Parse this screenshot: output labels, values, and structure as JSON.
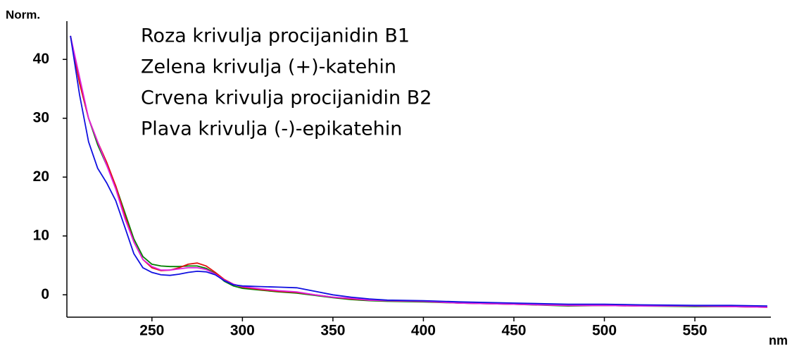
{
  "chart_data": {
    "type": "line",
    "y_label": "Norm.",
    "x_label": "nm",
    "annotations": [
      "Roza krivulja procijanidin B1",
      "Zelena krivulja (+)-katehin",
      "Crvena krivulja procijanidin B2",
      "Plava krivulja (-)-epikatehin"
    ],
    "x": [
      205,
      210,
      215,
      220,
      225,
      230,
      235,
      240,
      245,
      250,
      255,
      260,
      265,
      270,
      275,
      280,
      285,
      290,
      295,
      300,
      310,
      320,
      330,
      340,
      350,
      360,
      370,
      380,
      400,
      420,
      450,
      480,
      500,
      520,
      550,
      570,
      590
    ],
    "series": [
      {
        "color": "#008000",
        "values": [
          44,
          36,
          30,
          25.5,
          22,
          18.5,
          14,
          9.5,
          6.5,
          5.2,
          4.9,
          4.8,
          4.8,
          4.9,
          4.9,
          4.5,
          3.6,
          2.3,
          1.5,
          1.1,
          0.8,
          0.5,
          0.3,
          -0.1,
          -0.5,
          -0.8,
          -1.0,
          -1.1,
          -1.2,
          -1.4,
          -1.6,
          -1.9,
          -1.8,
          -1.9,
          -2.0,
          -2.0,
          -2.1
        ]
      },
      {
        "color": "#e01010",
        "values": [
          44,
          36,
          30,
          26,
          22.5,
          18.5,
          13.5,
          9,
          6,
          4.6,
          4.1,
          4.2,
          4.6,
          5.2,
          5.4,
          4.9,
          3.8,
          2.6,
          1.8,
          1.3,
          0.9,
          0.6,
          0.4,
          0,
          -0.4,
          -0.7,
          -0.9,
          -1.0,
          -1.1,
          -1.4,
          -1.6,
          -1.8,
          -1.8,
          -1.9,
          -1.9,
          -2.0,
          -2.1
        ]
      },
      {
        "color": "#e020e0",
        "values": [
          44,
          37,
          30,
          26,
          22,
          18,
          13,
          9,
          6,
          4.8,
          4.2,
          4.2,
          4.4,
          4.6,
          4.6,
          4.3,
          3.5,
          2.5,
          1.8,
          1.4,
          1.0,
          0.7,
          0.5,
          0,
          -0.4,
          -0.6,
          -0.9,
          -1.0,
          -1.1,
          -1.4,
          -1.6,
          -1.8,
          -1.8,
          -1.9,
          -1.9,
          -2.0,
          -2.1
        ]
      },
      {
        "color": "#1010e0",
        "values": [
          44,
          34,
          26,
          21.5,
          19,
          16,
          11.5,
          7,
          4.6,
          3.8,
          3.4,
          3.3,
          3.5,
          3.8,
          4.0,
          3.9,
          3.4,
          2.4,
          1.7,
          1.5,
          1.4,
          1.3,
          1.2,
          0.6,
          0,
          -0.4,
          -0.7,
          -0.9,
          -1.0,
          -1.2,
          -1.4,
          -1.6,
          -1.6,
          -1.7,
          -1.8,
          -1.8,
          -1.9
        ]
      }
    ],
    "xlim": [
      203,
      592
    ],
    "ylim": [
      -3.8,
      46.5
    ],
    "xticks": [
      250,
      300,
      350,
      400,
      450,
      500,
      550
    ],
    "yticks": [
      0,
      10,
      20,
      30,
      40
    ]
  }
}
